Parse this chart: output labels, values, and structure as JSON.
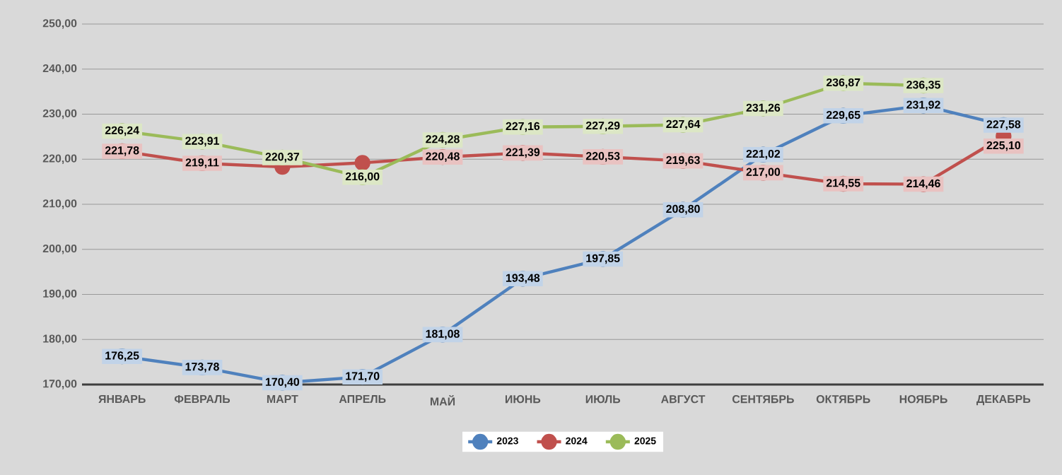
{
  "chart_data": {
    "type": "line",
    "categories": [
      "ЯНВАРЬ",
      "ФЕВРАЛЬ",
      "МАРТ",
      "АПРЕЛЬ",
      "МАЙ",
      "ИЮНЬ",
      "ИЮЛЬ",
      "АВГУСТ",
      "СЕНТЯБРЬ",
      "ОКТЯБРЬ",
      "НОЯБРЬ",
      "ДЕКАБРЬ"
    ],
    "series": [
      {
        "name": "2023",
        "color": "#4f81bd",
        "values": [
          176.25,
          173.78,
          170.4,
          171.7,
          181.08,
          193.48,
          197.85,
          208.8,
          221.02,
          229.65,
          231.92,
          227.58
        ],
        "value_labels": [
          "176,25",
          "173,78",
          "170,40",
          "171,70",
          "181,08",
          "193,48",
          "197,85",
          "208,80",
          "221,02",
          "229,65",
          "231,92",
          "227,58"
        ]
      },
      {
        "name": "2024",
        "color": "#c0504d",
        "values": [
          221.78,
          219.11,
          218.3,
          219.2,
          220.48,
          221.39,
          220.53,
          219.63,
          217.0,
          214.55,
          214.46,
          225.1
        ],
        "value_labels": [
          "221,78",
          "219,11",
          null,
          null,
          "220,48",
          "221,39",
          "220,53",
          "219,63",
          "217,00",
          "214,55",
          "214,46",
          "225,10"
        ]
      },
      {
        "name": "2025",
        "color": "#9bbb59",
        "values": [
          226.24,
          223.91,
          220.37,
          216.0,
          224.28,
          227.16,
          227.29,
          227.64,
          231.26,
          236.87,
          236.35,
          null
        ],
        "value_labels": [
          "226,24",
          "223,91",
          "220,37",
          "216,00",
          "224,28",
          "227,16",
          "227,29",
          "227,64",
          "231,26",
          "236,87",
          "236,35",
          null
        ]
      }
    ],
    "ylim": [
      170,
      250
    ],
    "yticks": [
      {
        "value": 170,
        "label": "170,00"
      },
      {
        "value": 180,
        "label": "180,00"
      },
      {
        "value": 190,
        "label": "190,00"
      },
      {
        "value": 200,
        "label": "200,00"
      },
      {
        "value": 210,
        "label": "210,00"
      },
      {
        "value": 220,
        "label": "220,00"
      },
      {
        "value": 230,
        "label": "230,00"
      },
      {
        "value": 240,
        "label": "240,00"
      },
      {
        "value": 250,
        "label": "250,00"
      }
    ],
    "grid": "y",
    "legend": "bottom",
    "marker": "circle",
    "line_style": "solid"
  }
}
